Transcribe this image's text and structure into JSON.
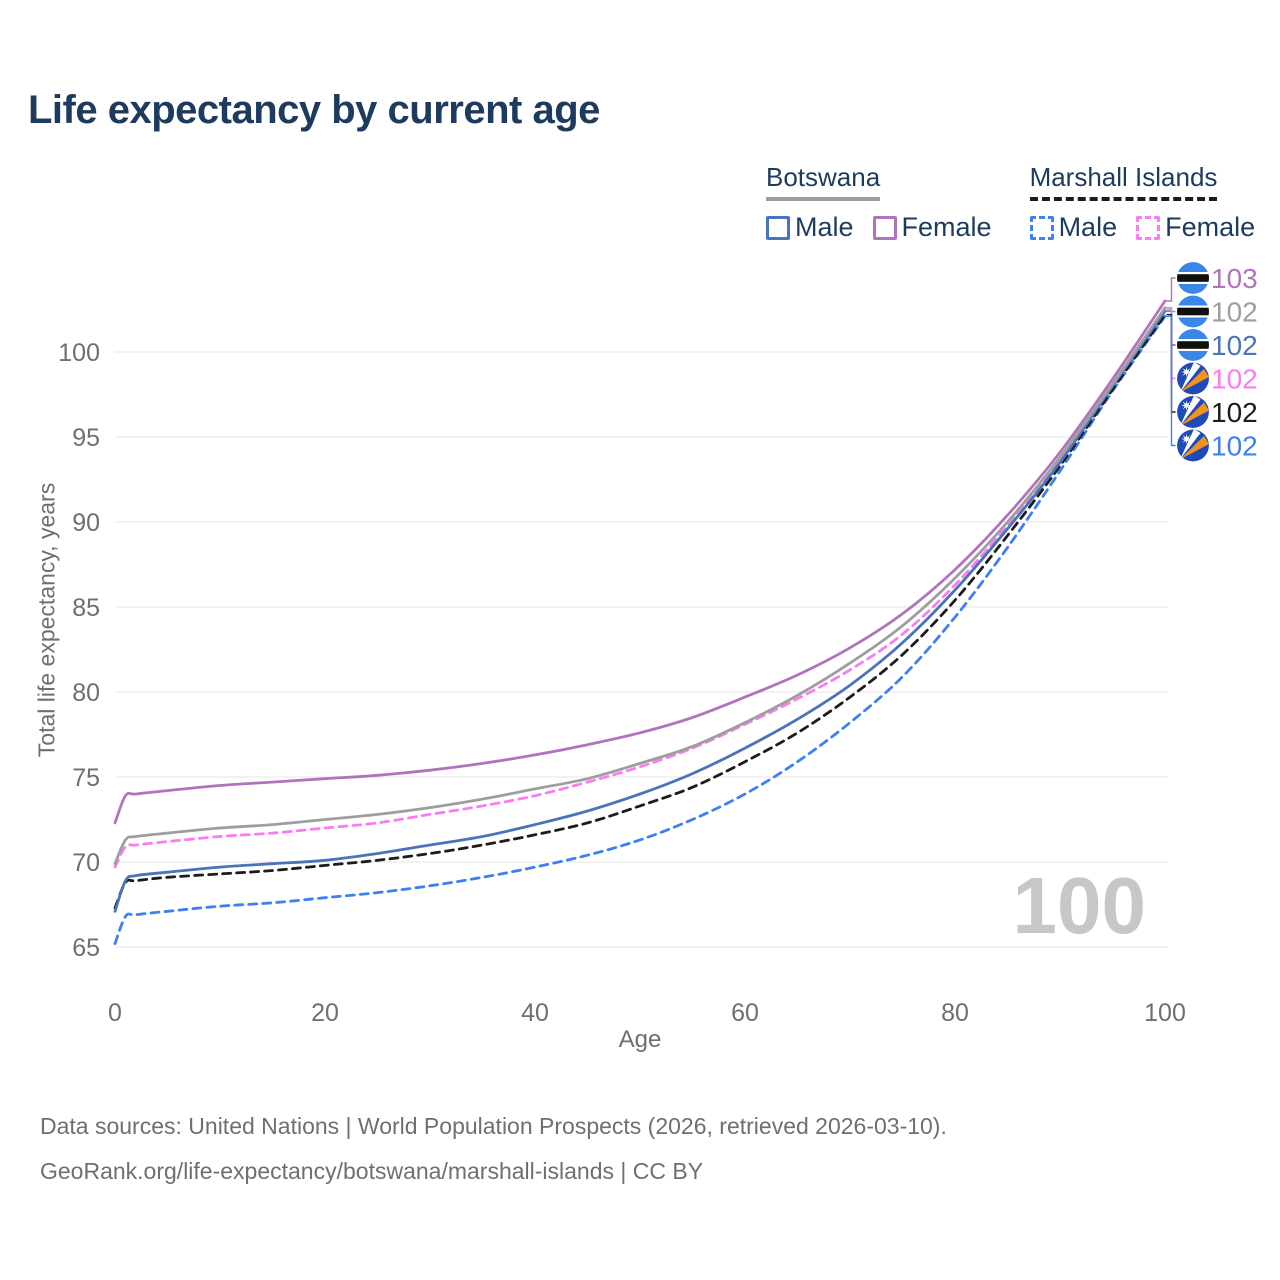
{
  "title": "Life expectancy by current age",
  "legend": {
    "groups": [
      {
        "label": "Botswana",
        "line_style": "solid",
        "line_color": "#9e9e9e",
        "items": [
          {
            "label": "Male",
            "color": "#4a74b9",
            "dashed": false
          },
          {
            "label": "Female",
            "color": "#b073bb",
            "dashed": false
          }
        ]
      },
      {
        "label": "Marshall Islands",
        "line_style": "dashed",
        "line_color": "#1c1c1c",
        "items": [
          {
            "label": "Male",
            "color": "#3c80f1",
            "dashed": true
          },
          {
            "label": "Female",
            "color": "#fa7cf2",
            "dashed": true
          }
        ]
      }
    ]
  },
  "chart_data": {
    "type": "line",
    "title": "Life expectancy by current age",
    "xlabel": "Age",
    "ylabel": "Total life expectancy, years",
    "xlim": [
      0,
      100
    ],
    "ylim": [
      65,
      100
    ],
    "x_ticks": [
      0,
      20,
      40,
      60,
      80,
      100
    ],
    "y_ticks": [
      65,
      70,
      75,
      80,
      85,
      90,
      95,
      100
    ],
    "grid": "horizontal",
    "legend_position": "top-right",
    "x": [
      0,
      1,
      2,
      5,
      10,
      15,
      20,
      25,
      30,
      35,
      40,
      45,
      50,
      55,
      60,
      65,
      70,
      75,
      80,
      85,
      90,
      95,
      100
    ],
    "series": [
      {
        "name": "Botswana - Female",
        "country": "Botswana",
        "sex": "Female",
        "style": "solid",
        "color": "#b173bc",
        "end_value": "103",
        "flag": "botswana",
        "values": [
          72.3,
          73.9,
          74.0,
          74.2,
          74.5,
          74.7,
          74.9,
          75.1,
          75.4,
          75.8,
          76.3,
          76.9,
          77.6,
          78.5,
          79.7,
          81.0,
          82.6,
          84.6,
          87.2,
          90.4,
          94.1,
          98.4,
          103.0
        ]
      },
      {
        "name": "Botswana - All",
        "country": "Botswana",
        "sex": "All",
        "style": "solid",
        "color": "#9e9e9e",
        "end_value": "102",
        "flag": "botswana",
        "values": [
          69.9,
          71.3,
          71.5,
          71.7,
          72.0,
          72.2,
          72.5,
          72.8,
          73.2,
          73.7,
          74.3,
          74.9,
          75.8,
          76.8,
          78.2,
          79.8,
          81.7,
          83.9,
          86.7,
          90.0,
          93.8,
          98.1,
          102.6
        ]
      },
      {
        "name": "Botswana - Male",
        "country": "Botswana",
        "sex": "Male",
        "style": "solid",
        "color": "#4a74b9",
        "end_value": "102",
        "flag": "botswana",
        "values": [
          67.1,
          68.9,
          69.2,
          69.4,
          69.7,
          69.9,
          70.1,
          70.5,
          71.0,
          71.5,
          72.2,
          73.0,
          74.0,
          75.2,
          76.7,
          78.4,
          80.4,
          82.9,
          86.0,
          89.6,
          93.5,
          98.0,
          102.4
        ]
      },
      {
        "name": "Marshall Islands - Female",
        "country": "Marshall Islands",
        "sex": "Female",
        "style": "dashed",
        "color": "#fa7cf2",
        "end_value": "102",
        "flag": "marshall-islands",
        "values": [
          69.7,
          70.9,
          71.0,
          71.2,
          71.5,
          71.7,
          72.0,
          72.3,
          72.8,
          73.3,
          73.9,
          74.7,
          75.6,
          76.7,
          78.1,
          79.6,
          81.3,
          83.4,
          86.3,
          89.8,
          93.7,
          98.0,
          102.5
        ]
      },
      {
        "name": "Marshall Islands - All",
        "country": "Marshall Islands",
        "sex": "All",
        "style": "dashed",
        "color": "#1c1c1c",
        "end_value": "102",
        "flag": "marshall-islands",
        "values": [
          67.3,
          68.8,
          68.9,
          69.1,
          69.3,
          69.5,
          69.8,
          70.1,
          70.5,
          71.0,
          71.6,
          72.3,
          73.3,
          74.4,
          75.9,
          77.6,
          79.7,
          82.2,
          85.4,
          89.2,
          93.3,
          97.8,
          102.2
        ]
      },
      {
        "name": "Marshall Islands - Male",
        "country": "Marshall Islands",
        "sex": "Male",
        "style": "dashed",
        "color": "#3c80f1",
        "end_value": "102",
        "flag": "marshall-islands",
        "values": [
          65.2,
          66.8,
          66.9,
          67.1,
          67.4,
          67.6,
          67.9,
          68.2,
          68.6,
          69.1,
          69.7,
          70.4,
          71.3,
          72.5,
          74.0,
          75.9,
          78.2,
          80.9,
          84.4,
          88.5,
          93.0,
          97.7,
          102.1
        ]
      }
    ]
  },
  "watermark": "100",
  "colors": {
    "title_text": "#1d3a5f",
    "axis_text": "#6f6f6f",
    "gridline": "#e9e9e9",
    "watermark": "#c7c7c7",
    "botswana_flag_blue": "#3b87e8",
    "marshall_flag_blue": "#1e4bb8",
    "marshall_flag_orange": "#f0931f"
  },
  "footer": {
    "line1": "Data sources: United Nations | World Population Prospects (2026, retrieved 2026-03-10).",
    "line2": "GeoRank.org/life-expectancy/botswana/marshall-islands | CC BY"
  }
}
